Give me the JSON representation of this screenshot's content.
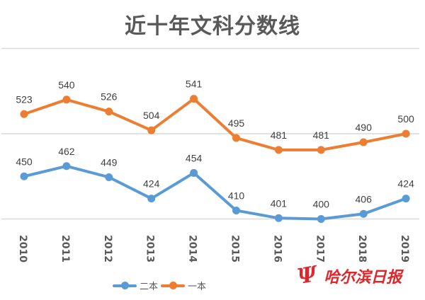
{
  "title": "近十年文科分数线",
  "chart_data": {
    "type": "line",
    "title": "近十年文科分数线",
    "xlabel": "",
    "ylabel": "",
    "categories": [
      "2010",
      "2011",
      "2012",
      "2013",
      "2014",
      "2015",
      "2016",
      "2017",
      "2018",
      "2019"
    ],
    "series": [
      {
        "name": "二本",
        "color": "#5b9bd5",
        "values": [
          450,
          462,
          449,
          424,
          454,
          410,
          401,
          400,
          406,
          424
        ]
      },
      {
        "name": "一本",
        "color": "#ed7d31",
        "values": [
          523,
          540,
          526,
          504,
          541,
          495,
          481,
          481,
          490,
          500
        ]
      }
    ],
    "ylim": [
      400,
      600
    ],
    "gridlines": [
      400,
      500,
      600
    ],
    "grid": true,
    "data_labels": true,
    "legend_position": "bottom"
  },
  "legend": [
    {
      "label": "二本",
      "color": "#5b9bd5"
    },
    {
      "label": "一本",
      "color": "#ed7d31"
    }
  ],
  "watermark": {
    "logo": "Ψ",
    "text": "哈尔滨日报",
    "color": "#e0262a"
  }
}
